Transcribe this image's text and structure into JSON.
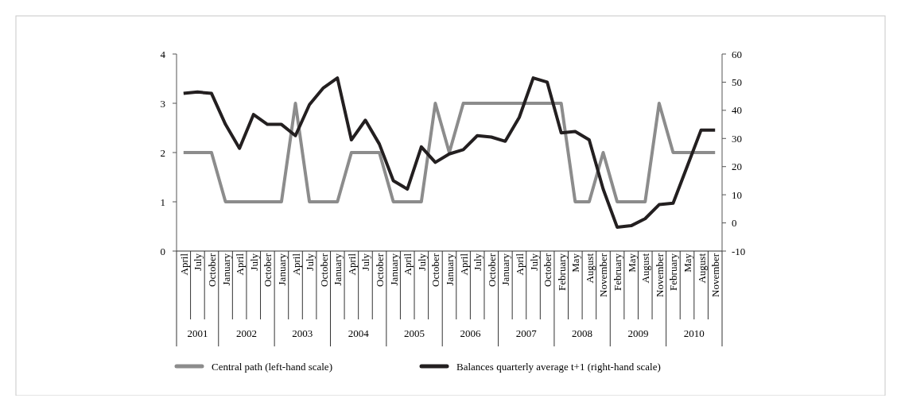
{
  "chart_data": {
    "type": "line",
    "categories": [
      "April",
      "July",
      "October",
      "January",
      "April",
      "July",
      "October",
      "January",
      "April",
      "July",
      "October",
      "January",
      "April",
      "July",
      "October",
      "January",
      "April",
      "July",
      "October",
      "January",
      "April",
      "July",
      "October",
      "January",
      "April",
      "July",
      "October",
      "February",
      "May",
      "August",
      "November",
      "February",
      "May",
      "August",
      "November",
      "February",
      "May",
      "August",
      "November"
    ],
    "series": [
      {
        "name": "Central path (left-hand scale)",
        "color": "#8c8c8c",
        "values": [
          2,
          2,
          2,
          1,
          1,
          1,
          1,
          1,
          3,
          1,
          1,
          1,
          2,
          2,
          2,
          1,
          1,
          1,
          3,
          2,
          3,
          3,
          3,
          3,
          3,
          3,
          3,
          3,
          1,
          1,
          2,
          1,
          1,
          1,
          3,
          2,
          2,
          2,
          2
        ]
      },
      {
        "name": "Balances quarterly average t+1 (right-hand scale)",
        "color": "#231f20",
        "axis": "y2",
        "values": [
          46,
          46.5,
          46,
          35,
          26.5,
          38.5,
          35,
          35,
          31,
          42,
          48,
          51.5,
          29.5,
          36.5,
          28,
          15,
          12,
          27,
          21.5,
          24.5,
          26,
          31,
          30.5,
          29,
          37.5,
          51.5,
          50,
          32,
          32.5,
          29.5,
          12,
          -1.5,
          -1,
          1.5,
          6.5,
          7,
          20,
          33,
          33
        ]
      }
    ],
    "ylim": [
      0,
      4
    ],
    "yticks": [
      0,
      1,
      2,
      3,
      4
    ],
    "y2lim": [
      -10,
      60
    ],
    "y2ticks": [
      -10,
      0,
      10,
      20,
      30,
      40,
      50,
      60
    ],
    "annotations": [
      "2001",
      "2002",
      "2003",
      "2004",
      "2005",
      "2006",
      "2007",
      "2008",
      "2009",
      "2010"
    ],
    "legend": "bottom",
    "grid": false
  }
}
